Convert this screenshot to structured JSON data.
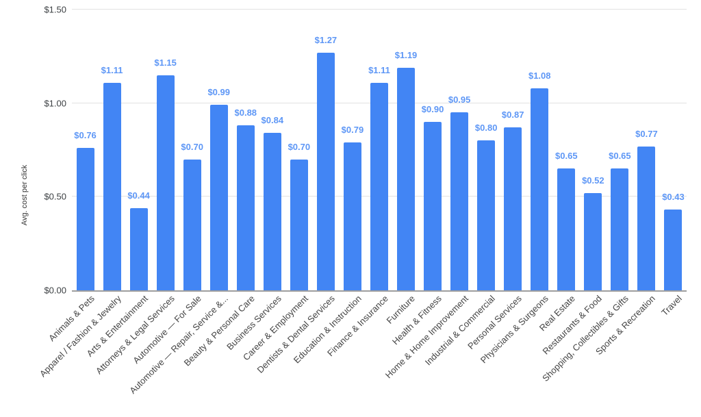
{
  "chart_data": {
    "type": "bar",
    "title": "",
    "xlabel": "",
    "ylabel": "Avg. cost per click",
    "ylim": [
      0,
      1.5
    ],
    "grid": true,
    "legend": "none",
    "bar_color": "#4285f4",
    "annotation_color": "#5e97f6",
    "y_ticks": [
      {
        "value": 0.0,
        "label": "$0.00"
      },
      {
        "value": 0.5,
        "label": "$0.50"
      },
      {
        "value": 1.0,
        "label": "$1.00"
      },
      {
        "value": 1.5,
        "label": "$1.50"
      }
    ],
    "categories": [
      "Animals & Pets",
      "Apparel / Fashion & Jewelry",
      "Arts & Entertainment",
      "Attorneys & Legal Services",
      "Automotive — For Sale",
      "Automotive — Repair, Service &...",
      "Beauty & Personal Care",
      "Business Services",
      "Career & Employment",
      "Dentists & Dental Services",
      "Education & Instruction",
      "Finance & Insurance",
      "Furniture",
      "Health & Fitness",
      "Home & Home Improvement",
      "Industrial & Commercial",
      "Personal Services",
      "Physicians & Surgeons",
      "Real Estate",
      "Restaurants & Food",
      "Shopping, Collectibles & Gifts",
      "Sports & Recreation",
      "Travel"
    ],
    "values": [
      0.76,
      1.11,
      0.44,
      1.15,
      0.7,
      0.99,
      0.88,
      0.84,
      0.7,
      1.27,
      0.79,
      1.11,
      1.19,
      0.9,
      0.95,
      0.8,
      0.87,
      1.08,
      0.65,
      0.52,
      0.65,
      0.77,
      0.43
    ],
    "value_labels": [
      "$0.76",
      "$1.11",
      "$0.44",
      "$1.15",
      "$0.70",
      "$0.99",
      "$0.88",
      "$0.84",
      "$0.70",
      "$1.27",
      "$0.79",
      "$1.11",
      "$1.19",
      "$0.90",
      "$0.95",
      "$0.80",
      "$0.87",
      "$1.08",
      "$0.65",
      "$0.52",
      "$0.65",
      "$0.77",
      "$0.43"
    ]
  }
}
